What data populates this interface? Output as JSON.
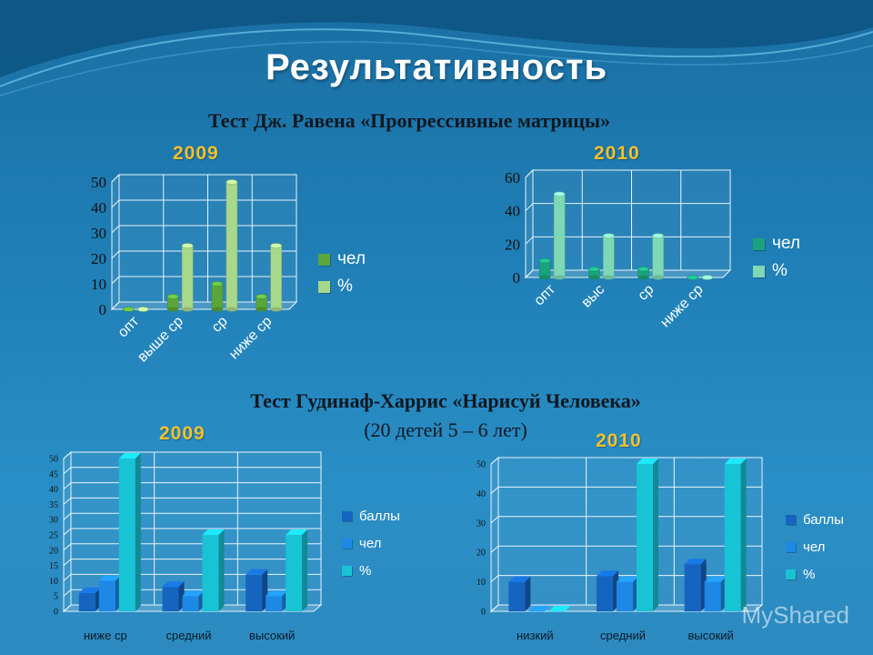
{
  "title": "Результативность",
  "section1_title": "Тест Дж. Равена «Прогрессивные матрицы»",
  "section2_title_line1": "Тест Гудинаф-Харрис «Нарисуй Человека»",
  "section2_title_line2": "(20 детей 5 – 6 лет)",
  "watermark": "MyShared",
  "colors": {
    "green_dark": "#5aa63a",
    "green_light": "#a8d88a",
    "teal_dark": "#1aa37a",
    "teal_light": "#7ed8b6",
    "blue_dark": "#1565c0",
    "blue_mid": "#1e88e5",
    "cyan": "#19c3d6"
  },
  "chart_data": [
    {
      "id": "raven-2009",
      "type": "bar",
      "year_label": "2009",
      "categories": [
        "опт",
        "выше ср",
        "ср",
        "ниже ср"
      ],
      "series": [
        {
          "name": "чел",
          "values": [
            0,
            5,
            10,
            5
          ]
        },
        {
          "name": "%",
          "values": [
            0,
            25,
            50,
            25
          ]
        }
      ],
      "yticks": [
        "0",
        "10",
        "20",
        "30",
        "40",
        "50"
      ],
      "ylim": [
        0,
        50
      ]
    },
    {
      "id": "raven-2010",
      "type": "bar",
      "year_label": "2010",
      "categories": [
        "опт",
        "выс",
        "ср",
        "ниже ср"
      ],
      "series": [
        {
          "name": "чел",
          "values": [
            10,
            5,
            5,
            0
          ]
        },
        {
          "name": "%",
          "values": [
            50,
            25,
            25,
            0
          ]
        }
      ],
      "yticks": [
        "0",
        "20",
        "40",
        "60"
      ],
      "ylim": [
        0,
        60
      ]
    },
    {
      "id": "goodenough-2009",
      "type": "bar",
      "year_label": "2009",
      "categories": [
        "ниже ср",
        "средний",
        "высокий"
      ],
      "series": [
        {
          "name": "баллы",
          "values": [
            6,
            8,
            12
          ]
        },
        {
          "name": "чел",
          "values": [
            10,
            5,
            5
          ]
        },
        {
          "name": "%",
          "values": [
            50,
            25,
            25
          ]
        }
      ],
      "yticks": [
        "0",
        "5",
        "10",
        "15",
        "20",
        "25",
        "30",
        "35",
        "40",
        "45",
        "50"
      ],
      "ylim": [
        0,
        50
      ]
    },
    {
      "id": "goodenough-2010",
      "type": "bar",
      "year_label": "2010",
      "categories": [
        "низкий",
        "средний",
        "высокий"
      ],
      "series": [
        {
          "name": "баллы",
          "values": [
            10,
            12,
            16
          ]
        },
        {
          "name": "чел",
          "values": [
            0,
            10,
            10
          ]
        },
        {
          "name": "%",
          "values": [
            0,
            50,
            50
          ]
        }
      ],
      "yticks": [
        "0",
        "10",
        "20",
        "30",
        "40",
        "50"
      ],
      "ylim": [
        0,
        50
      ]
    }
  ]
}
